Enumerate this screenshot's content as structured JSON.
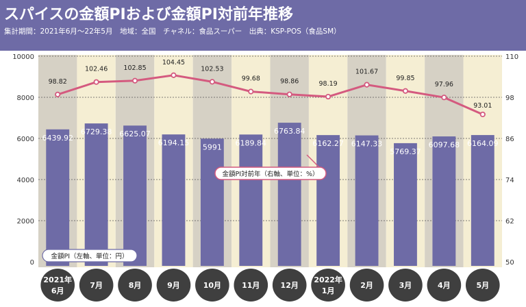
{
  "header": {
    "title": "スパイスの金額PIおよび金額PI対前年推移",
    "subtitle": "集計期間：2021年6月～22年5月　地域：全国　チャネル：食品スーパー　出典：KSP-POS（食品SM）"
  },
  "colors": {
    "header_bg": "#6e6ba6",
    "bar": "#6e6ba6",
    "line": "#d45a7f",
    "col_light": "#f5eed3",
    "col_dark": "#d6d1c5"
  },
  "chart_data": {
    "type": "bar",
    "categories": [
      [
        "2021年",
        "6月"
      ],
      [
        "7月"
      ],
      [
        "8月"
      ],
      [
        "9月"
      ],
      [
        "10月"
      ],
      [
        "11月"
      ],
      [
        "12月"
      ],
      [
        "2022年",
        "1月"
      ],
      [
        "2月"
      ],
      [
        "3月"
      ],
      [
        "4月"
      ],
      [
        "5月"
      ]
    ],
    "series": [
      {
        "name": "金額PI（左軸、単位：円）",
        "type": "bar",
        "axis": "left",
        "values": [
          6439.92,
          6729.38,
          6625.07,
          6194.15,
          5991,
          6189.84,
          6763.84,
          6162.27,
          6147.33,
          5769.37,
          6097.68,
          6164.09
        ]
      },
      {
        "name": "金額PI対前年（右軸、単位：%）",
        "type": "line",
        "axis": "right",
        "values": [
          98.82,
          102.46,
          102.85,
          104.45,
          102.53,
          99.68,
          98.86,
          98.19,
          101.67,
          99.85,
          97.96,
          93.01
        ]
      }
    ],
    "bar_labels": [
      "6439.92",
      "6729.38",
      "6625.07",
      "6194.15",
      "5991",
      "6189.84",
      "6763.84",
      "6162.27",
      "6147.33",
      "5769.37",
      "6097.68",
      "6164.09"
    ],
    "line_labels": [
      "98.82",
      "102.46",
      "102.85",
      "104.45",
      "102.53",
      "99.68",
      "98.86",
      "98.19",
      "101.67",
      "99.85",
      "97.96",
      "93.01"
    ],
    "y_left": {
      "min": 0,
      "max": 10000,
      "ticks": [
        "0",
        "2000",
        "4000",
        "6000",
        "8000",
        "10000"
      ]
    },
    "y_right": {
      "min": 50,
      "max": 110,
      "ticks": [
        "50",
        "62",
        "74",
        "86",
        "98",
        "110"
      ]
    },
    "grid": "dashed",
    "legend_bar": "金額PI（左軸、単位：円）",
    "legend_line": "金額PI対前年（右軸、単位：%）"
  }
}
